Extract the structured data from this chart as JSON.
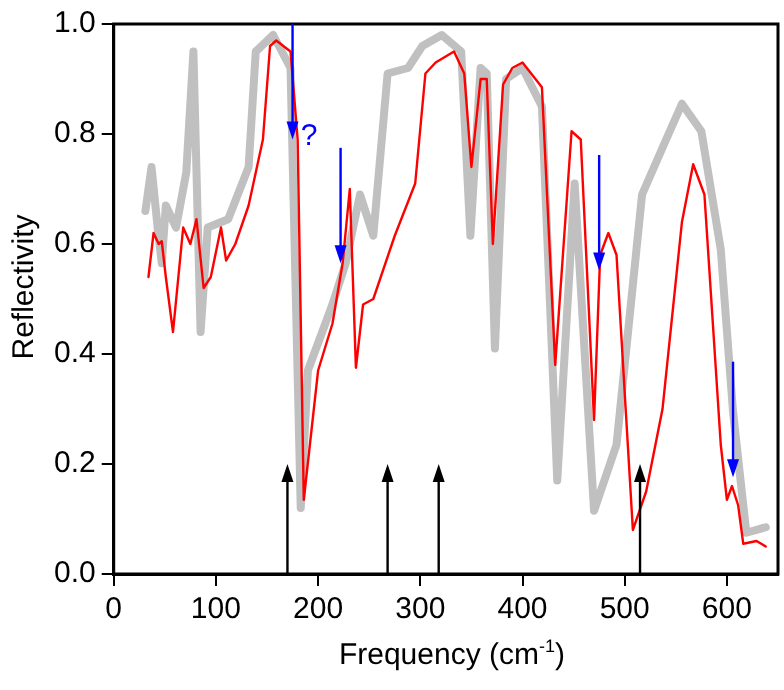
{
  "chart_data": {
    "type": "line",
    "xlabel": "Frequency (cm$^{-1}$)",
    "ylabel": "Reflectivity",
    "xlim": [
      0,
      650
    ],
    "xticks": [
      0,
      100,
      200,
      300,
      400,
      500,
      600
    ],
    "ylim": [
      0,
      1
    ],
    "yticks": [
      {
        "value": 0,
        "label": "0.0"
      },
      {
        "value": 0.2,
        "label": "0.2"
      },
      {
        "value": 0.4,
        "label": "0.4"
      },
      {
        "value": 0.6,
        "label": "0.6"
      },
      {
        "value": 0.8,
        "label": "0.8"
      },
      {
        "value": 1,
        "label": "1.0"
      }
    ],
    "grid": false,
    "legend": false,
    "marker": "none",
    "series": [
      {
        "color": "#c0c0c0",
        "x": [
          31,
          37,
          43,
          47,
          51,
          61,
          71,
          78,
          85,
          92,
          112,
          132,
          139,
          156,
          173,
          183,
          190,
          214,
          227,
          241,
          254,
          268,
          288,
          302,
          321,
          340,
          349,
          359,
          365,
          373,
          384,
          400,
          419,
          434,
          451,
          470,
          492,
          517,
          537,
          556,
          575,
          594,
          606,
          619,
          638
        ],
        "values": [
          0.66,
          0.74,
          0.63,
          0.565,
          0.67,
          0.63,
          0.73,
          0.95,
          0.44,
          0.63,
          0.645,
          0.74,
          0.95,
          0.98,
          0.92,
          0.12,
          0.37,
          0.49,
          0.565,
          0.69,
          0.615,
          0.91,
          0.92,
          0.96,
          0.98,
          0.95,
          0.615,
          0.92,
          0.91,
          0.41,
          0.9,
          0.92,
          0.85,
          0.17,
          0.71,
          0.115,
          0.235,
          0.69,
          0.775,
          0.855,
          0.805,
          0.59,
          0.295,
          0.075,
          0.085
        ]
      },
      {
        "color": "#ff0000",
        "x": [
          34,
          39,
          44,
          47,
          51,
          58,
          68,
          75,
          81,
          88,
          95,
          105,
          110,
          119,
          132,
          146,
          153,
          159,
          173,
          180,
          186,
          200,
          214,
          224,
          231,
          237,
          244,
          254,
          275,
          295,
          305,
          315,
          333,
          343,
          350,
          359,
          365,
          371,
          381,
          390,
          400,
          419,
          432,
          448,
          457,
          470,
          476,
          484,
          492,
          508,
          521,
          537,
          556,
          567,
          578,
          594,
          600,
          605,
          611,
          616,
          629,
          638
        ],
        "values": [
          0.54,
          0.62,
          0.6,
          0.605,
          0.54,
          0.44,
          0.63,
          0.6,
          0.645,
          0.52,
          0.54,
          0.63,
          0.57,
          0.6,
          0.67,
          0.79,
          0.96,
          0.97,
          0.95,
          0.79,
          0.135,
          0.37,
          0.455,
          0.565,
          0.7,
          0.375,
          0.49,
          0.5,
          0.615,
          0.71,
          0.91,
          0.93,
          0.95,
          0.91,
          0.74,
          0.9,
          0.9,
          0.6,
          0.89,
          0.92,
          0.93,
          0.885,
          0.38,
          0.805,
          0.79,
          0.28,
          0.58,
          0.62,
          0.58,
          0.08,
          0.15,
          0.3,
          0.64,
          0.745,
          0.69,
          0.235,
          0.135,
          0.16,
          0.125,
          0.055,
          0.06,
          0.05
        ]
      }
    ],
    "ref_lines": [
      {
        "axis": "x",
        "value": 170,
        "color": "#000000"
      },
      {
        "axis": "x",
        "value": 268,
        "color": "#000000"
      },
      {
        "axis": "x",
        "value": 318,
        "color": "#000000"
      },
      {
        "axis": "x",
        "value": 515,
        "color": "#000000"
      },
      {
        "axis": "x",
        "value": 175,
        "color": "#0000ff"
      },
      {
        "axis": "x",
        "value": 222,
        "color": "#0000ff"
      },
      {
        "axis": "x",
        "value": 475,
        "color": "#0000ff"
      },
      {
        "axis": "x",
        "value": 606,
        "color": "#0000ff"
      }
    ],
    "annotations": [
      {
        "text": "?",
        "x": 183,
        "y": 0.78
      }
    ]
  }
}
